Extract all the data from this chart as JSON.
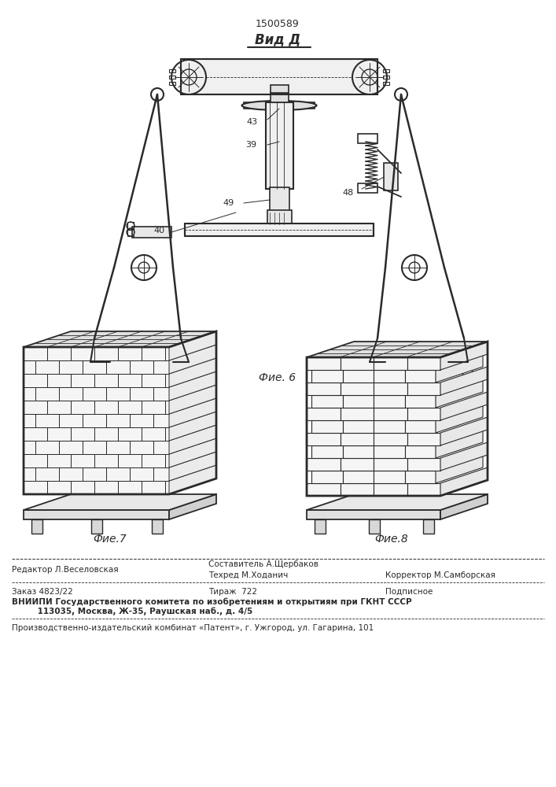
{
  "patent_number": "1500589",
  "view_label": "Вид Д",
  "fig6_label": "Фие. 6",
  "fig7_label": "Фие.7",
  "fig8_label": "Фие.8",
  "bg_color": "#ffffff",
  "line_color": "#2a2a2a",
  "footer": {
    "editor": "Редактор Л.Веселовская",
    "composer": "Составитель А.Щербаков",
    "techred": "Техред М.Ходанич",
    "corrector": "Корректор М.Самборская",
    "order": "Заказ 4823/22",
    "tirazh": "Тираж  722",
    "podpisnoe": "Подписное",
    "vniipи": "ВНИИПИ Государственного комитета по изобретениям и открытиям при ГКНТ СССР",
    "address": "113035, Москва, Ж-35, Раушская наб., д. 4/5",
    "patent_plant": "Производственно-издательский комбинат «Патент», г. Ужгород, ул. Гагарина, 101"
  }
}
